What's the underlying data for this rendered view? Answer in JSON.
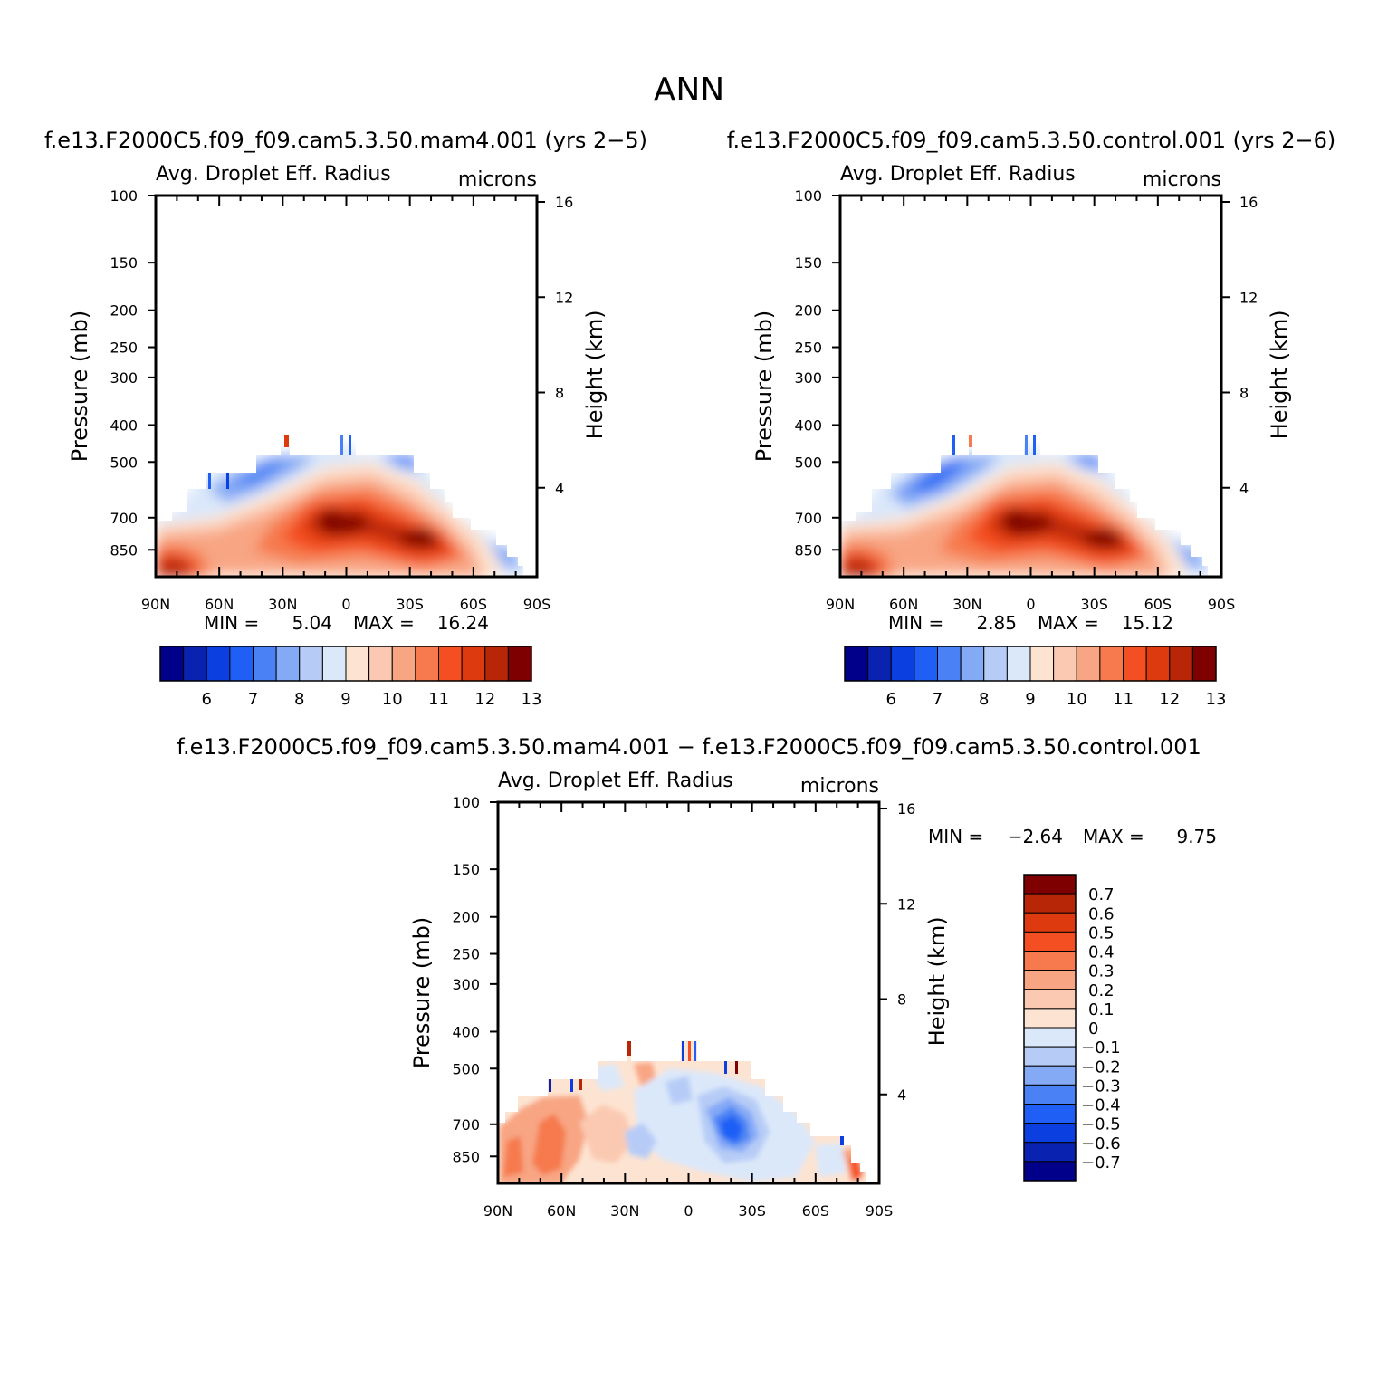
{
  "figure": {
    "title": "ANN",
    "diff_title": "f.e13.F2000C5.f09_f09.cam5.3.50.mam4.001  −  f.e13.F2000C5.f09_f09.cam5.3.50.control.001"
  },
  "colors": {
    "panel_scale": [
      "#00008b",
      "#0a22b0",
      "#0b3fe0",
      "#1f5ff5",
      "#4a82f5",
      "#84a9f5",
      "#b6ccf7",
      "#dbe8fa",
      "#fde4d2",
      "#fbc9b1",
      "#f8a583",
      "#f67a4d",
      "#f44f22",
      "#de3a10",
      "#b82608",
      "#7f0000"
    ],
    "diff_scale": [
      "#7f0000",
      "#b82608",
      "#de3a10",
      "#f44f22",
      "#f67a4d",
      "#f8a583",
      "#fbc9b1",
      "#fde4d2",
      "#dbe8fa",
      "#b6ccf7",
      "#84a9f5",
      "#4a82f5",
      "#1f5ff5",
      "#0b3fe0",
      "#0a22b0",
      "#00008b"
    ]
  },
  "chart_data": [
    {
      "type": "heatmap",
      "subtitle": "f.e13.F2000C5.f09_f09.cam5.3.50.mam4.001  (yrs  2−5)",
      "variable": "Avg.  Droplet  Eff.  Radius",
      "units": "microns",
      "ylabel": "Pressure  (mb)",
      "y2label": "Height  (km)",
      "y_ticks": [
        "100",
        "150",
        "200",
        "250",
        "300",
        "400",
        "500",
        "700",
        "850"
      ],
      "y_tick_values": [
        100,
        150,
        200,
        250,
        300,
        400,
        500,
        700,
        850
      ],
      "y2_ticks": [
        "16",
        "12",
        "8",
        "4"
      ],
      "x_ticks": [
        "90N",
        "60N",
        "30N",
        "0",
        "30S",
        "60S",
        "90S"
      ],
      "y_scale": "log",
      "ylim": [
        1000,
        100
      ],
      "min_label": "MIN  =",
      "min_value": "5.04",
      "max_label": "MAX  =",
      "max_value": "16.24",
      "colorbar_labels": [
        "6",
        "7",
        "8",
        "9",
        "10",
        "11",
        "12",
        "13"
      ],
      "colorbar_levels": [
        5.5,
        6,
        6.5,
        7,
        7.5,
        8,
        8.5,
        9,
        9.5,
        10,
        10.5,
        11,
        11.5,
        12,
        12.5,
        13,
        13.5
      ]
    },
    {
      "type": "heatmap",
      "subtitle": "f.e13.F2000C5.f09_f09.cam5.3.50.control.001  (yrs  2−6)",
      "variable": "Avg.  Droplet  Eff.  Radius",
      "units": "microns",
      "ylabel": "Pressure  (mb)",
      "y2label": "Height  (km)",
      "y_ticks": [
        "100",
        "150",
        "200",
        "250",
        "300",
        "400",
        "500",
        "700",
        "850"
      ],
      "y_tick_values": [
        100,
        150,
        200,
        250,
        300,
        400,
        500,
        700,
        850
      ],
      "y2_ticks": [
        "16",
        "12",
        "8",
        "4"
      ],
      "x_ticks": [
        "90N",
        "60N",
        "30N",
        "0",
        "30S",
        "60S",
        "90S"
      ],
      "y_scale": "log",
      "ylim": [
        1000,
        100
      ],
      "min_label": "MIN  =",
      "min_value": "2.85",
      "max_label": "MAX  =",
      "max_value": "15.12",
      "colorbar_labels": [
        "6",
        "7",
        "8",
        "9",
        "10",
        "11",
        "12",
        "13"
      ],
      "colorbar_levels": [
        5.5,
        6,
        6.5,
        7,
        7.5,
        8,
        8.5,
        9,
        9.5,
        10,
        10.5,
        11,
        11.5,
        12,
        12.5,
        13,
        13.5
      ]
    },
    {
      "type": "heatmap",
      "variable": "Avg.  Droplet  Eff.  Radius",
      "units": "microns",
      "ylabel": "Pressure  (mb)",
      "y2label": "Height  (km)",
      "y_ticks": [
        "100",
        "150",
        "200",
        "250",
        "300",
        "400",
        "500",
        "700",
        "850"
      ],
      "y_tick_values": [
        100,
        150,
        200,
        250,
        300,
        400,
        500,
        700,
        850
      ],
      "y2_ticks": [
        "16",
        "12",
        "8",
        "4"
      ],
      "x_ticks": [
        "90N",
        "60N",
        "30N",
        "0",
        "30S",
        "60S",
        "90S"
      ],
      "y_scale": "log",
      "ylim": [
        1000,
        100
      ],
      "min_label": "MIN  =",
      "min_value": "−2.64",
      "max_label": "MAX  =",
      "max_value": "9.75",
      "colorbar_labels": [
        "0.7",
        "0.6",
        "0.5",
        "0.4",
        "0.3",
        "0.2",
        "0.1",
        "0",
        "−0.1",
        "−0.2",
        "−0.3",
        "−0.4",
        "−0.5",
        "−0.6",
        "−0.7"
      ],
      "colorbar_levels": [
        0.7,
        0.6,
        0.5,
        0.4,
        0.3,
        0.2,
        0.1,
        0,
        -0.1,
        -0.2,
        -0.3,
        -0.4,
        -0.5,
        -0.6,
        -0.7
      ]
    }
  ]
}
